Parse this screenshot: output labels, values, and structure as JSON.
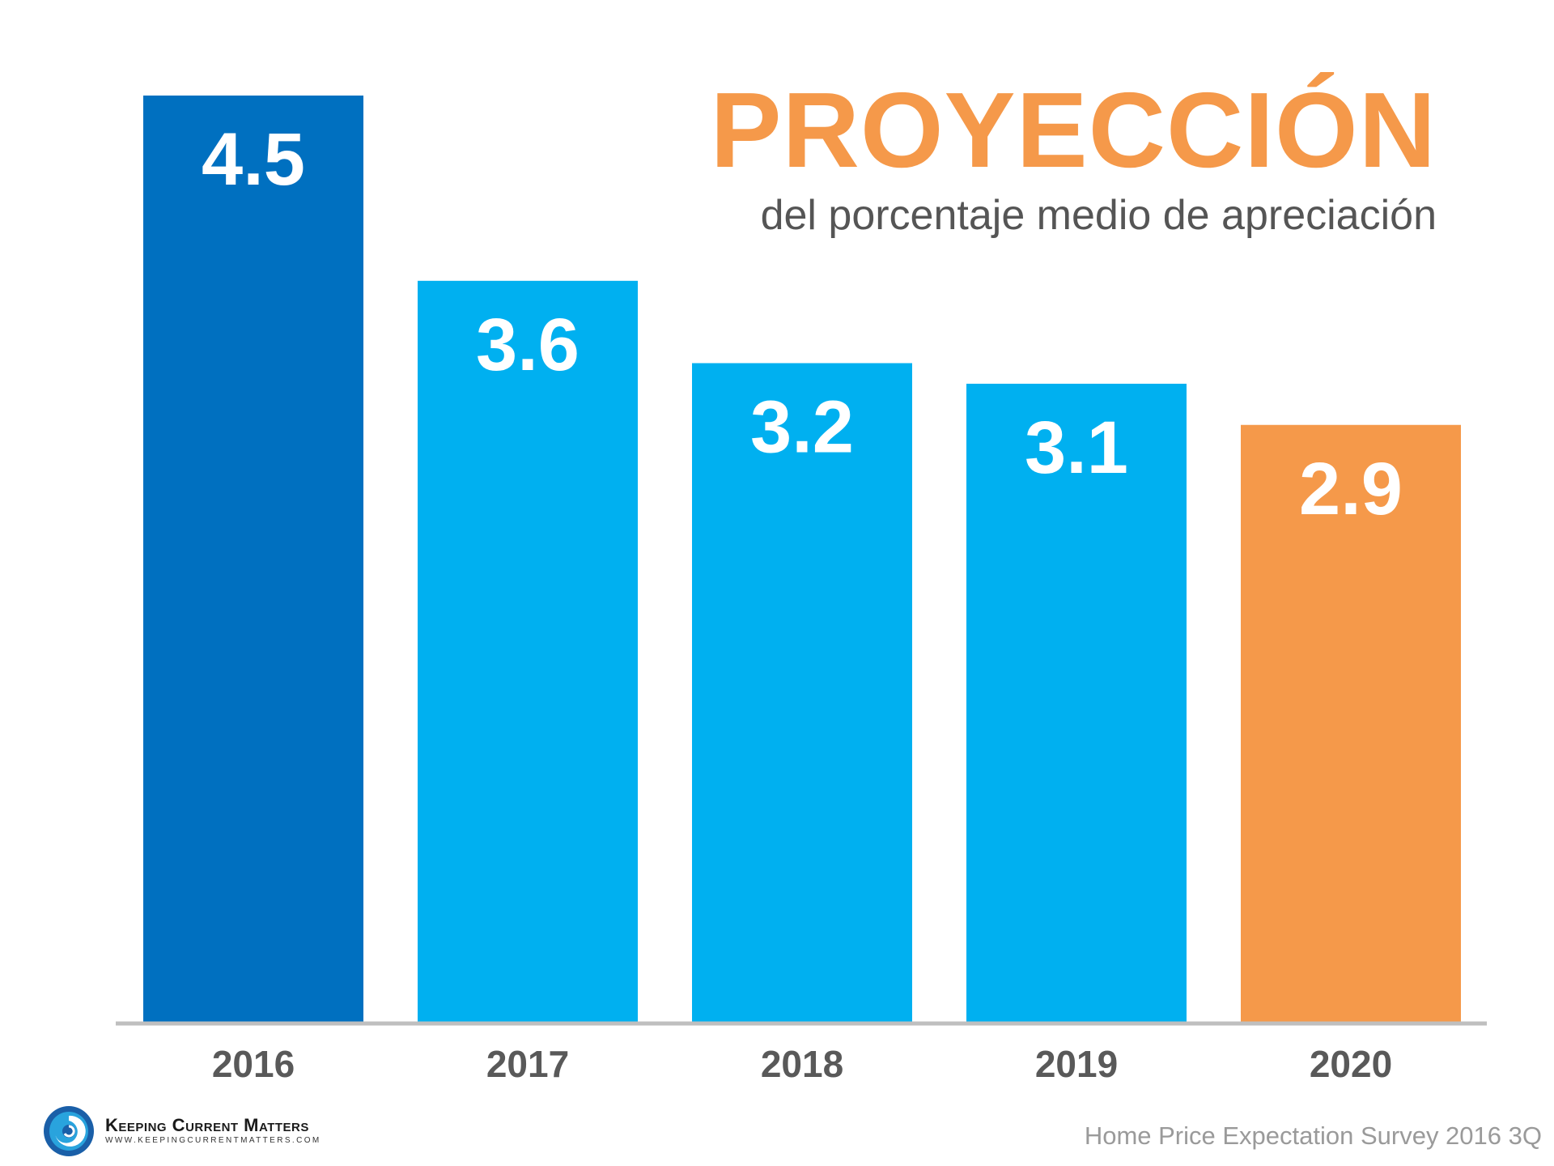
{
  "header": {
    "title": "PROYECCIÓN",
    "subtitle": "del porcentaje medio de apreciación"
  },
  "footer": {
    "source": "Home Price Expectation Survey 2016 3Q",
    "logo_name": "Keeping Current Matters",
    "logo_url": "WWW.KEEPINGCURRENTMATTERS.COM"
  },
  "colors": {
    "dark_blue": "#0070C0",
    "light_blue": "#00B0F0",
    "orange": "#F5994A",
    "axis": "#BFBFBF",
    "tick_label": "#595959"
  },
  "chart_data": {
    "type": "bar",
    "title": "PROYECCIÓN",
    "subtitle": "del porcentaje medio de apreciación",
    "categories": [
      "2016",
      "2017",
      "2018",
      "2019",
      "2020"
    ],
    "values": [
      4.5,
      3.6,
      3.2,
      3.1,
      2.9
    ],
    "value_labels": [
      "4.5",
      "3.6",
      "3.2",
      "3.1",
      "2.9"
    ],
    "bar_colors": [
      "#0070C0",
      "#00B0F0",
      "#00B0F0",
      "#00B0F0",
      "#F5994A"
    ],
    "xlabel": "",
    "ylabel": "",
    "ylim": [
      0,
      4.5
    ],
    "grid": false,
    "legend": "none"
  }
}
